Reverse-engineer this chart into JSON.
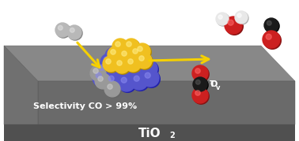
{
  "bg_color": "#ffffff",
  "ni_color": "#5555cc",
  "ni_shadow": "#2222aa",
  "ni_highlight": "#8888ee",
  "ni_gray": "#999999",
  "s_color": "#f0c020",
  "s_shadow": "#b08800",
  "s_highlight": "#ffee88",
  "h_color": "#b8b8b8",
  "h_highlight": "#e0e0e0",
  "co2_black": "#1a1a1a",
  "co2_red": "#cc2020",
  "h2o_red": "#cc2020",
  "h2o_white": "#e8e8e8",
  "arrow_color": "#f5d000",
  "slab_top": "#888888",
  "slab_front": "#6a6a6a",
  "slab_left": "#707070",
  "slab_bottom": "#505050",
  "text_color": "#ffffff",
  "text_selectivity": "Selectivity CO > 99%",
  "text_tio2_main": "TiO",
  "text_tio2_sub": "2"
}
